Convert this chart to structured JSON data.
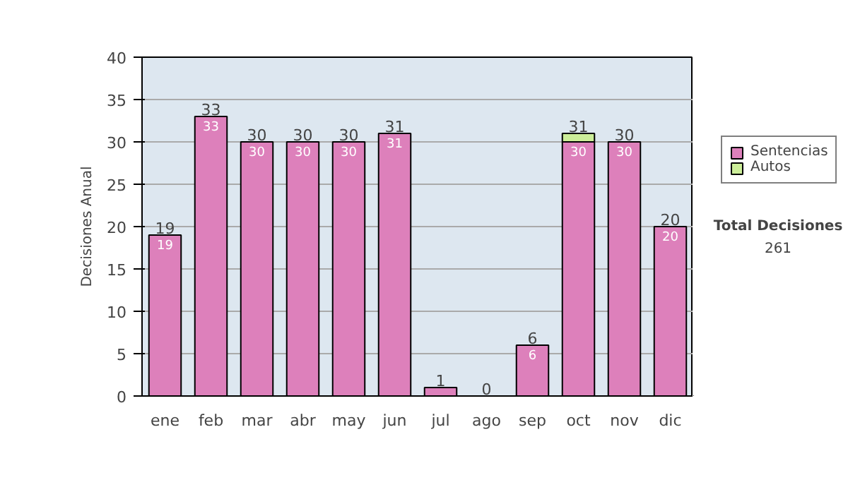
{
  "chart_data": {
    "type": "bar",
    "stacked": true,
    "ylabel": "Decisiones Anual",
    "categories": [
      "ene",
      "feb",
      "mar",
      "abr",
      "may",
      "jun",
      "jul",
      "ago",
      "sep",
      "oct",
      "nov",
      "dic"
    ],
    "series": [
      {
        "name": "Sentencias",
        "color": "#dd80bb",
        "values": [
          19,
          33,
          30,
          30,
          30,
          31,
          1,
          0,
          6,
          30,
          30,
          20
        ],
        "value_labels": [
          "19",
          "33",
          "30",
          "30",
          "30",
          "31",
          null,
          null,
          "6",
          "30",
          "30",
          "20"
        ]
      },
      {
        "name": "Autos",
        "color": "#ccee99",
        "values": [
          0,
          0,
          0,
          0,
          0,
          0,
          0,
          0,
          0,
          1,
          0,
          0
        ]
      }
    ],
    "totals": [
      "19",
      "33",
      "30",
      "30",
      "30",
      "31",
      "1",
      "0",
      "6",
      "31",
      "30",
      "20"
    ],
    "ylim": [
      0,
      40
    ],
    "yticks": [
      0,
      5,
      10,
      15,
      20,
      25,
      30,
      35,
      40
    ],
    "grid": "y",
    "legend": "right",
    "annotations": [
      "Total Decisiones",
      "261"
    ]
  }
}
